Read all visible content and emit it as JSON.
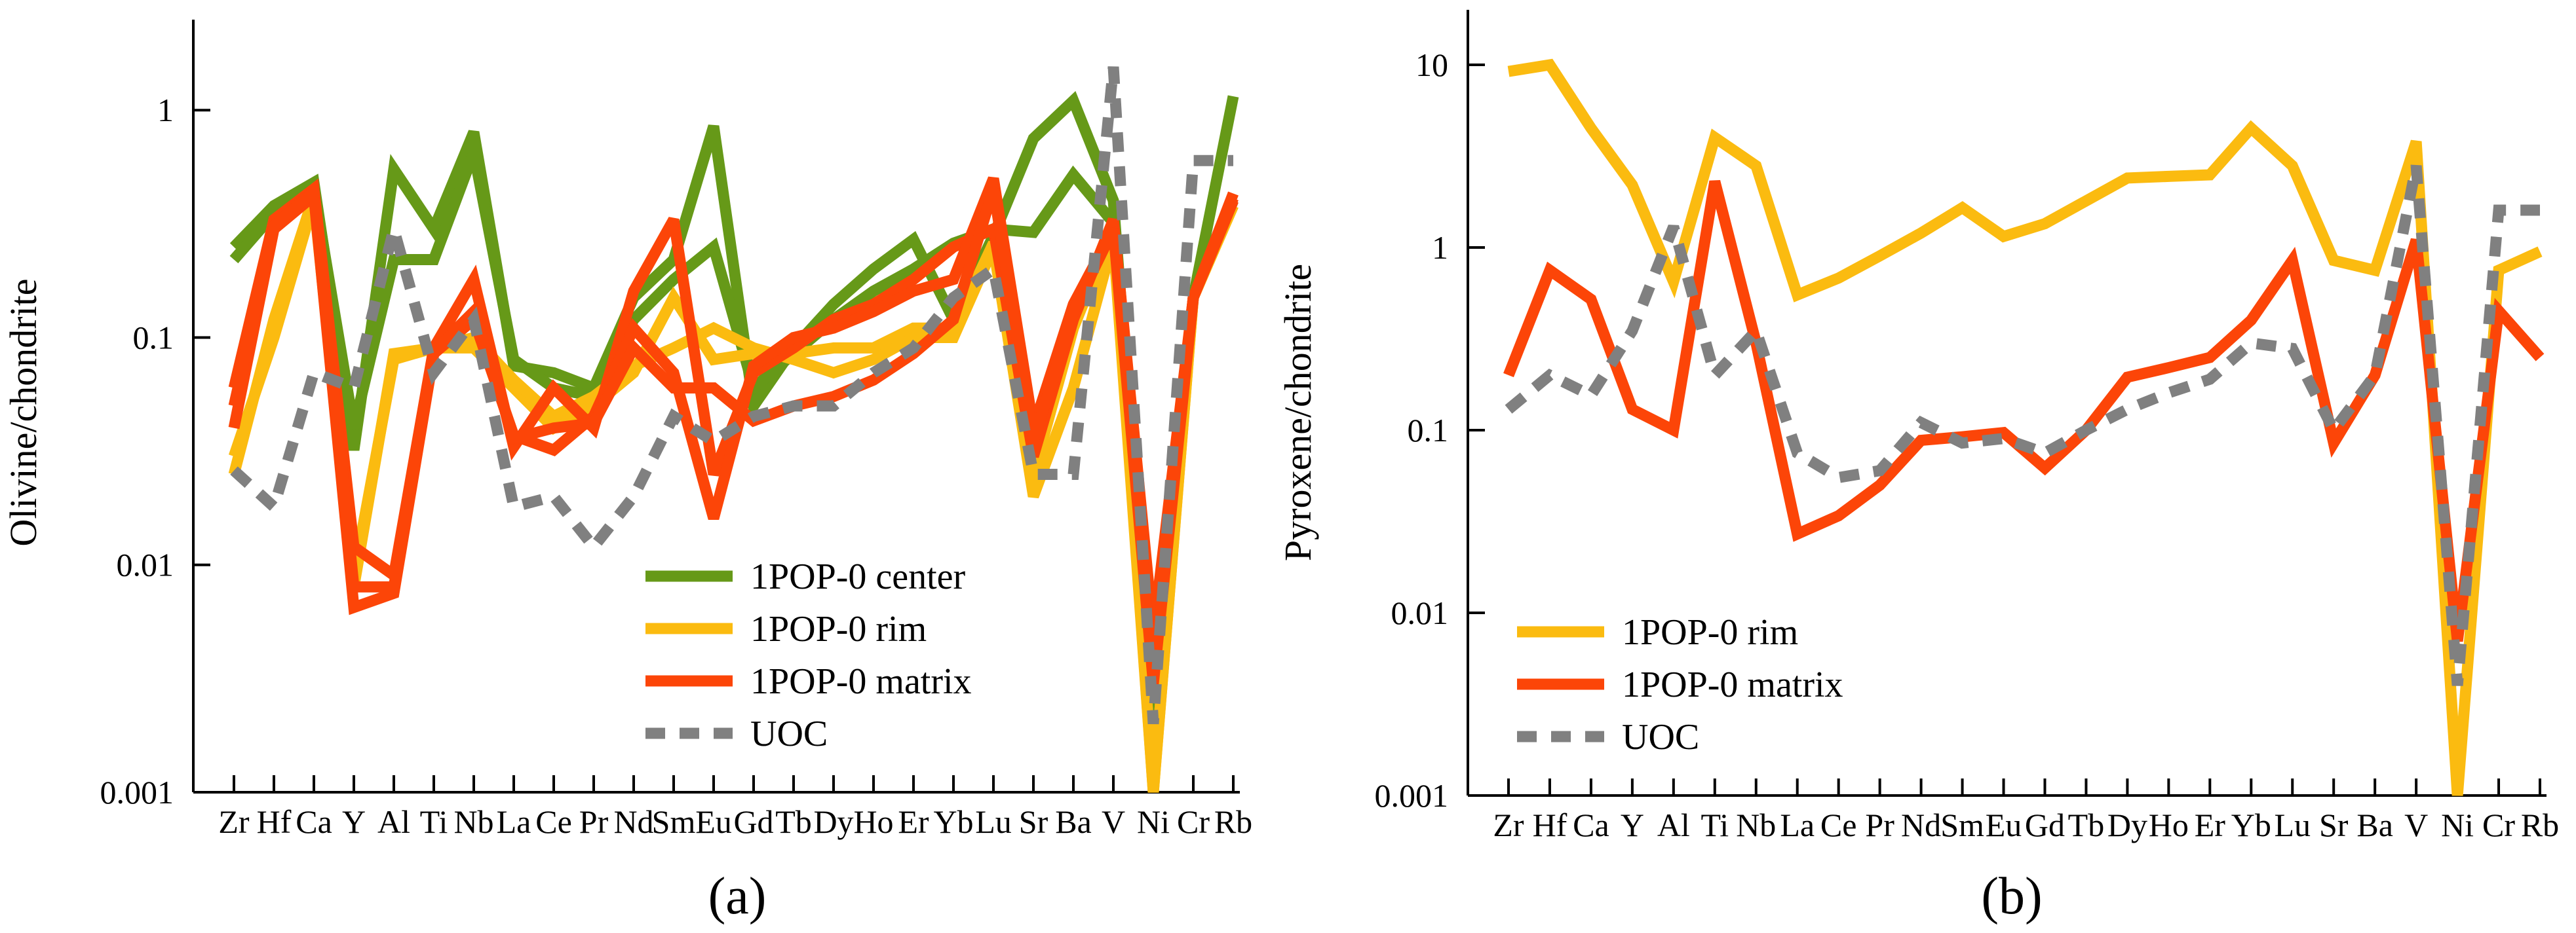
{
  "colors": {
    "center": "#669918",
    "rim": "#fbbb10",
    "matrix": "#fc4508",
    "uoc": "#808080"
  },
  "chart_data": [
    {
      "type": "line",
      "panel_label": "(a)",
      "ylabel": "Olivine/chondrite",
      "yscale": "log",
      "ylim": [
        0.001,
        2.5
      ],
      "yticks": [
        {
          "v": 0.001,
          "label": "0.001"
        },
        {
          "v": 0.01,
          "label": "0.01"
        },
        {
          "v": 0.1,
          "label": "0.1"
        },
        {
          "v": 1,
          "label": "1"
        }
      ],
      "categories": [
        "Zr",
        "Hf",
        "Ca",
        "Y",
        "Al",
        "Ti",
        "Nb",
        "La",
        "Ce",
        "Pr",
        "Nd",
        "Sm",
        "Eu",
        "Gd",
        "Tb",
        "Dy",
        "Ho",
        "Er",
        "Yb",
        "Lu",
        "Sr",
        "Ba",
        "V",
        "Ni",
        "Cr",
        "Rb"
      ],
      "category_labels": [
        "Zr",
        "Hf",
        "Ca",
        "Y",
        "Al",
        "Ti",
        "Nb",
        "La",
        "Ce",
        "Pr",
        "Nd",
        "Sm",
        "Eu",
        "Gd",
        "Tb",
        "Dy",
        "Ho",
        "Er",
        "Yb",
        "Lu",
        "Sr",
        "Ba",
        "V",
        "Ni",
        "Cr",
        "Rb"
      ],
      "legend": [
        "1POP-0 center",
        "1POP-0 rim",
        "1POP-0 matrix",
        "UOC"
      ],
      "series": [
        {
          "name": "1POP-0 center",
          "style": "center",
          "values": [
            0.25,
            0.38,
            0.48,
            0.032,
            0.55,
            0.3,
            0.8,
            0.075,
            0.07,
            0.06,
            0.15,
            0.22,
            0.85,
            0.05,
            0.09,
            0.14,
            0.2,
            0.27,
            0.12,
            0.28,
            0.75,
            1.1,
            0.4,
            0.002,
            0.15,
            1.15
          ]
        },
        {
          "name": "1POP-0 center",
          "style": "center",
          "values": [
            0.22,
            0.35,
            0.45,
            0.04,
            0.22,
            0.22,
            0.65,
            0.08,
            0.06,
            0.055,
            0.12,
            0.18,
            0.25,
            0.06,
            0.085,
            0.12,
            0.16,
            0.2,
            0.26,
            0.3,
            0.29,
            0.52,
            0.32,
            0.002,
            0.15,
            0.4
          ]
        },
        {
          "name": "1POP-0 rim",
          "style": "rim",
          "values": [
            0.025,
            0.12,
            0.42,
            0.009,
            0.08,
            0.09,
            0.09,
            0.06,
            0.04,
            0.05,
            0.07,
            0.15,
            0.08,
            0.085,
            0.085,
            0.09,
            0.09,
            0.11,
            0.11,
            0.26,
            0.025,
            0.11,
            0.3,
            0.001,
            0.15,
            0.38
          ]
        },
        {
          "name": "1POP-0 rim",
          "style": "rim",
          "values": [
            0.03,
            0.1,
            0.4,
            0.008,
            0.085,
            0.09,
            0.1,
            0.065,
            0.045,
            0.055,
            0.075,
            0.09,
            0.11,
            0.09,
            0.08,
            0.07,
            0.08,
            0.1,
            0.1,
            0.25,
            0.02,
            0.06,
            0.27,
            0.001,
            0.15,
            0.38
          ]
        },
        {
          "name": "1POP-0 matrix",
          "style": "matrix",
          "values": [
            0.06,
            0.33,
            0.45,
            0.012,
            0.009,
            0.09,
            0.18,
            0.033,
            0.06,
            0.04,
            0.16,
            0.33,
            0.025,
            0.07,
            0.09,
            0.12,
            0.14,
            0.18,
            0.25,
            0.3,
            0.03,
            0.12,
            0.33,
            0.005,
            0.15,
            0.43
          ]
        },
        {
          "name": "1POP-0 matrix",
          "style": "matrix",
          "values": [
            0.04,
            0.3,
            0.42,
            0.0065,
            0.0075,
            0.085,
            0.12,
            0.037,
            0.032,
            0.045,
            0.11,
            0.07,
            0.016,
            0.075,
            0.1,
            0.11,
            0.13,
            0.16,
            0.18,
            0.5,
            0.04,
            0.14,
            0.3,
            0.004,
            0.15,
            0.4
          ]
        },
        {
          "name": "1POP-0 matrix",
          "style": "matrix",
          "values": [
            0.05,
            0.31,
            0.44,
            0.008,
            0.008,
            0.087,
            0.13,
            0.036,
            0.04,
            0.042,
            0.09,
            0.06,
            0.06,
            0.043,
            0.05,
            0.055,
            0.065,
            0.085,
            0.12,
            0.45,
            0.035,
            0.13,
            0.3,
            0.003,
            0.15,
            0.41
          ]
        },
        {
          "name": "UOC",
          "style": "uoc",
          "values": [
            0.026,
            0.018,
            0.07,
            0.06,
            0.3,
            0.07,
            0.12,
            0.018,
            0.02,
            0.012,
            0.02,
            0.045,
            0.035,
            0.045,
            0.05,
            0.05,
            0.07,
            0.09,
            0.15,
            0.2,
            0.025,
            0.025,
            1.55,
            0.002,
            0.6,
            0.6
          ]
        }
      ]
    },
    {
      "type": "line",
      "panel_label": "(b)",
      "ylabel": "Pyroxene/chondrite",
      "yscale": "log",
      "ylim": [
        0.001,
        20
      ],
      "yticks": [
        {
          "v": 0.001,
          "label": "0.001"
        },
        {
          "v": 0.01,
          "label": "0.01"
        },
        {
          "v": 0.1,
          "label": "0.1"
        },
        {
          "v": 1,
          "label": "1"
        },
        {
          "v": 10,
          "label": "10"
        }
      ],
      "categories": [
        "Zr",
        "Hf",
        "Ca",
        "Y",
        "Al",
        "Ti",
        "Nb",
        "La",
        "Ce",
        "Pr",
        "Nd",
        "Sm",
        "Eu",
        "Gd",
        "Tb",
        "Dy",
        "Ho",
        "Er",
        "Yb",
        "Lu",
        "Sr",
        "Ba",
        "V",
        "Ni",
        "Cr",
        "Rb"
      ],
      "category_labels": [
        "Zr",
        "Hf",
        "Ca",
        "Y",
        "Al",
        "Ti",
        "Nb",
        "La",
        "Ce",
        "Pr",
        "Nd",
        "Sm",
        "Eu",
        "Gd",
        "Tb",
        "Dy",
        "Ho",
        "Er",
        "Yb",
        "Lu",
        "Sr",
        "Ba",
        "V",
        "Ni",
        "Cr",
        "Rb"
      ],
      "legend": [
        "1POP-0 rim",
        "1POP-0 matrix",
        "UOC"
      ],
      "series": [
        {
          "name": "1POP-0 rim",
          "style": "rim",
          "values": [
            9.2,
            10,
            4.5,
            2.2,
            0.65,
            4,
            2.8,
            0.55,
            0.68,
            0.9,
            1.2,
            1.65,
            1.15,
            1.35,
            1.8,
            2.4,
            2.45,
            2.5,
            4.5,
            2.8,
            0.85,
            0.75,
            3.8,
            0.001,
            0.75,
            0.95
          ]
        },
        {
          "name": "1POP-0 matrix",
          "style": "matrix",
          "values": [
            0.2,
            0.75,
            0.52,
            0.13,
            0.1,
            2.3,
            0.3,
            0.027,
            0.034,
            0.05,
            0.088,
            0.092,
            0.097,
            0.062,
            0.1,
            0.195,
            0.22,
            0.25,
            0.4,
            0.85,
            0.085,
            0.2,
            1.1,
            0.007,
            0.45,
            0.25
          ]
        },
        {
          "name": "UOC",
          "style": "uoc",
          "values": [
            0.13,
            0.2,
            0.155,
            0.35,
            1.3,
            0.2,
            0.35,
            0.075,
            0.055,
            0.06,
            0.11,
            0.085,
            0.09,
            0.075,
            0.1,
            0.13,
            0.16,
            0.19,
            0.3,
            0.28,
            0.1,
            0.2,
            2.8,
            0.004,
            1.6,
            1.6
          ]
        }
      ]
    }
  ]
}
